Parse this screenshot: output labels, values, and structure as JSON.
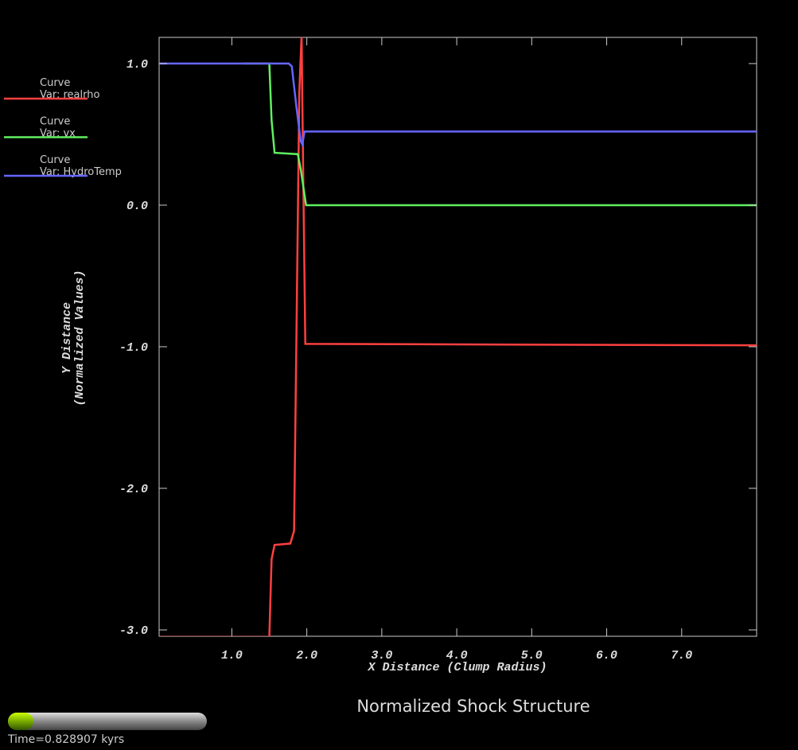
{
  "chart_data": {
    "type": "line",
    "title": "Normalized Shock Structure",
    "xlabel": "X Distance (Clump Radius)",
    "ylabel": [
      "Y Distance",
      "(Normalized Values)"
    ],
    "time_label": "Time=0.828907 kyrs",
    "xlim": [
      0.03,
      8.0
    ],
    "ylim": [
      -3.045,
      1.185
    ],
    "xticks": [
      {
        "value": 1,
        "label": "1.0"
      },
      {
        "value": 2,
        "label": "2.0"
      },
      {
        "value": 3,
        "label": "3.0"
      },
      {
        "value": 4,
        "label": "4.0"
      },
      {
        "value": 5,
        "label": "5.0"
      },
      {
        "value": 6,
        "label": "6.0"
      },
      {
        "value": 7,
        "label": "7.0"
      }
    ],
    "yticks": [
      {
        "value": -3,
        "label": "-3.0"
      },
      {
        "value": -2,
        "label": "-2.0"
      },
      {
        "value": -1,
        "label": "-1.0"
      },
      {
        "value": 0,
        "label": "0.0"
      },
      {
        "value": 1,
        "label": "1.0"
      }
    ],
    "series": [
      {
        "title": "Curve",
        "name": "Var: realrho",
        "color": "#ff4040",
        "x": [
          0.03,
          1.5,
          1.53,
          1.57,
          1.78,
          1.83,
          1.86,
          1.9,
          1.93,
          1.95,
          1.98,
          8.0
        ],
        "values": [
          -3.05,
          -3.05,
          -2.5,
          -2.4,
          -2.39,
          -2.3,
          -1.0,
          0.8,
          1.2,
          0.3,
          -0.98,
          -0.99
        ]
      },
      {
        "title": "Curve",
        "name": "Var: vx",
        "color": "#60f060",
        "x": [
          1.15,
          1.5,
          1.53,
          1.57,
          1.88,
          1.92,
          1.99,
          8.0
        ],
        "values": [
          1.0,
          1.0,
          0.6,
          0.37,
          0.36,
          0.25,
          0.0,
          0.0
        ]
      },
      {
        "title": "Curve",
        "name": "Var: HydroTemp",
        "color": "#6666ff",
        "x": [
          0.03,
          1.76,
          1.8,
          1.86,
          1.92,
          1.94,
          1.97,
          8.0
        ],
        "values": [
          1.0,
          1.0,
          0.98,
          0.7,
          0.45,
          0.43,
          0.52,
          0.52
        ]
      }
    ]
  }
}
